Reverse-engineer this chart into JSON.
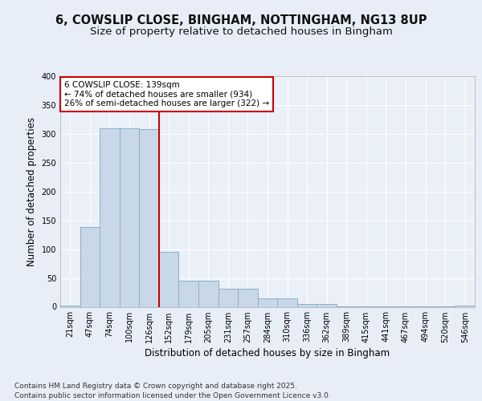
{
  "title1": "6, COWSLIP CLOSE, BINGHAM, NOTTINGHAM, NG13 8UP",
  "title2": "Size of property relative to detached houses in Bingham",
  "xlabel": "Distribution of detached houses by size in Bingham",
  "ylabel": "Number of detached properties",
  "categories": [
    "21sqm",
    "47sqm",
    "74sqm",
    "100sqm",
    "126sqm",
    "152sqm",
    "179sqm",
    "205sqm",
    "231sqm",
    "257sqm",
    "284sqm",
    "310sqm",
    "336sqm",
    "362sqm",
    "389sqm",
    "415sqm",
    "441sqm",
    "467sqm",
    "494sqm",
    "520sqm",
    "546sqm"
  ],
  "values": [
    2,
    138,
    310,
    310,
    308,
    95,
    45,
    45,
    32,
    32,
    14,
    14,
    5,
    5,
    1,
    1,
    1,
    1,
    1,
    1,
    2
  ],
  "bar_color": "#c8d8e8",
  "bar_edge_color": "#8ab0cc",
  "bar_linewidth": 0.7,
  "vline_x": 4.5,
  "vline_color": "#cc0000",
  "vline_linewidth": 1.5,
  "annotation_box_text": "6 COWSLIP CLOSE: 139sqm\n← 74% of detached houses are smaller (934)\n26% of semi-detached houses are larger (322) →",
  "annotation_box_color": "#cc0000",
  "annotation_box_fill": "#ffffff",
  "bg_color": "#e8eef8",
  "plot_bg_color": "#eaf0f8",
  "grid_color": "#ffffff",
  "ylim": [
    0,
    400
  ],
  "yticks": [
    0,
    50,
    100,
    150,
    200,
    250,
    300,
    350,
    400
  ],
  "footer": "Contains HM Land Registry data © Crown copyright and database right 2025.\nContains public sector information licensed under the Open Government Licence v3.0.",
  "title_fontsize": 10.5,
  "subtitle_fontsize": 9.5,
  "axis_label_fontsize": 8.5,
  "tick_fontsize": 7,
  "annotation_fontsize": 7.5,
  "footer_fontsize": 6.5
}
